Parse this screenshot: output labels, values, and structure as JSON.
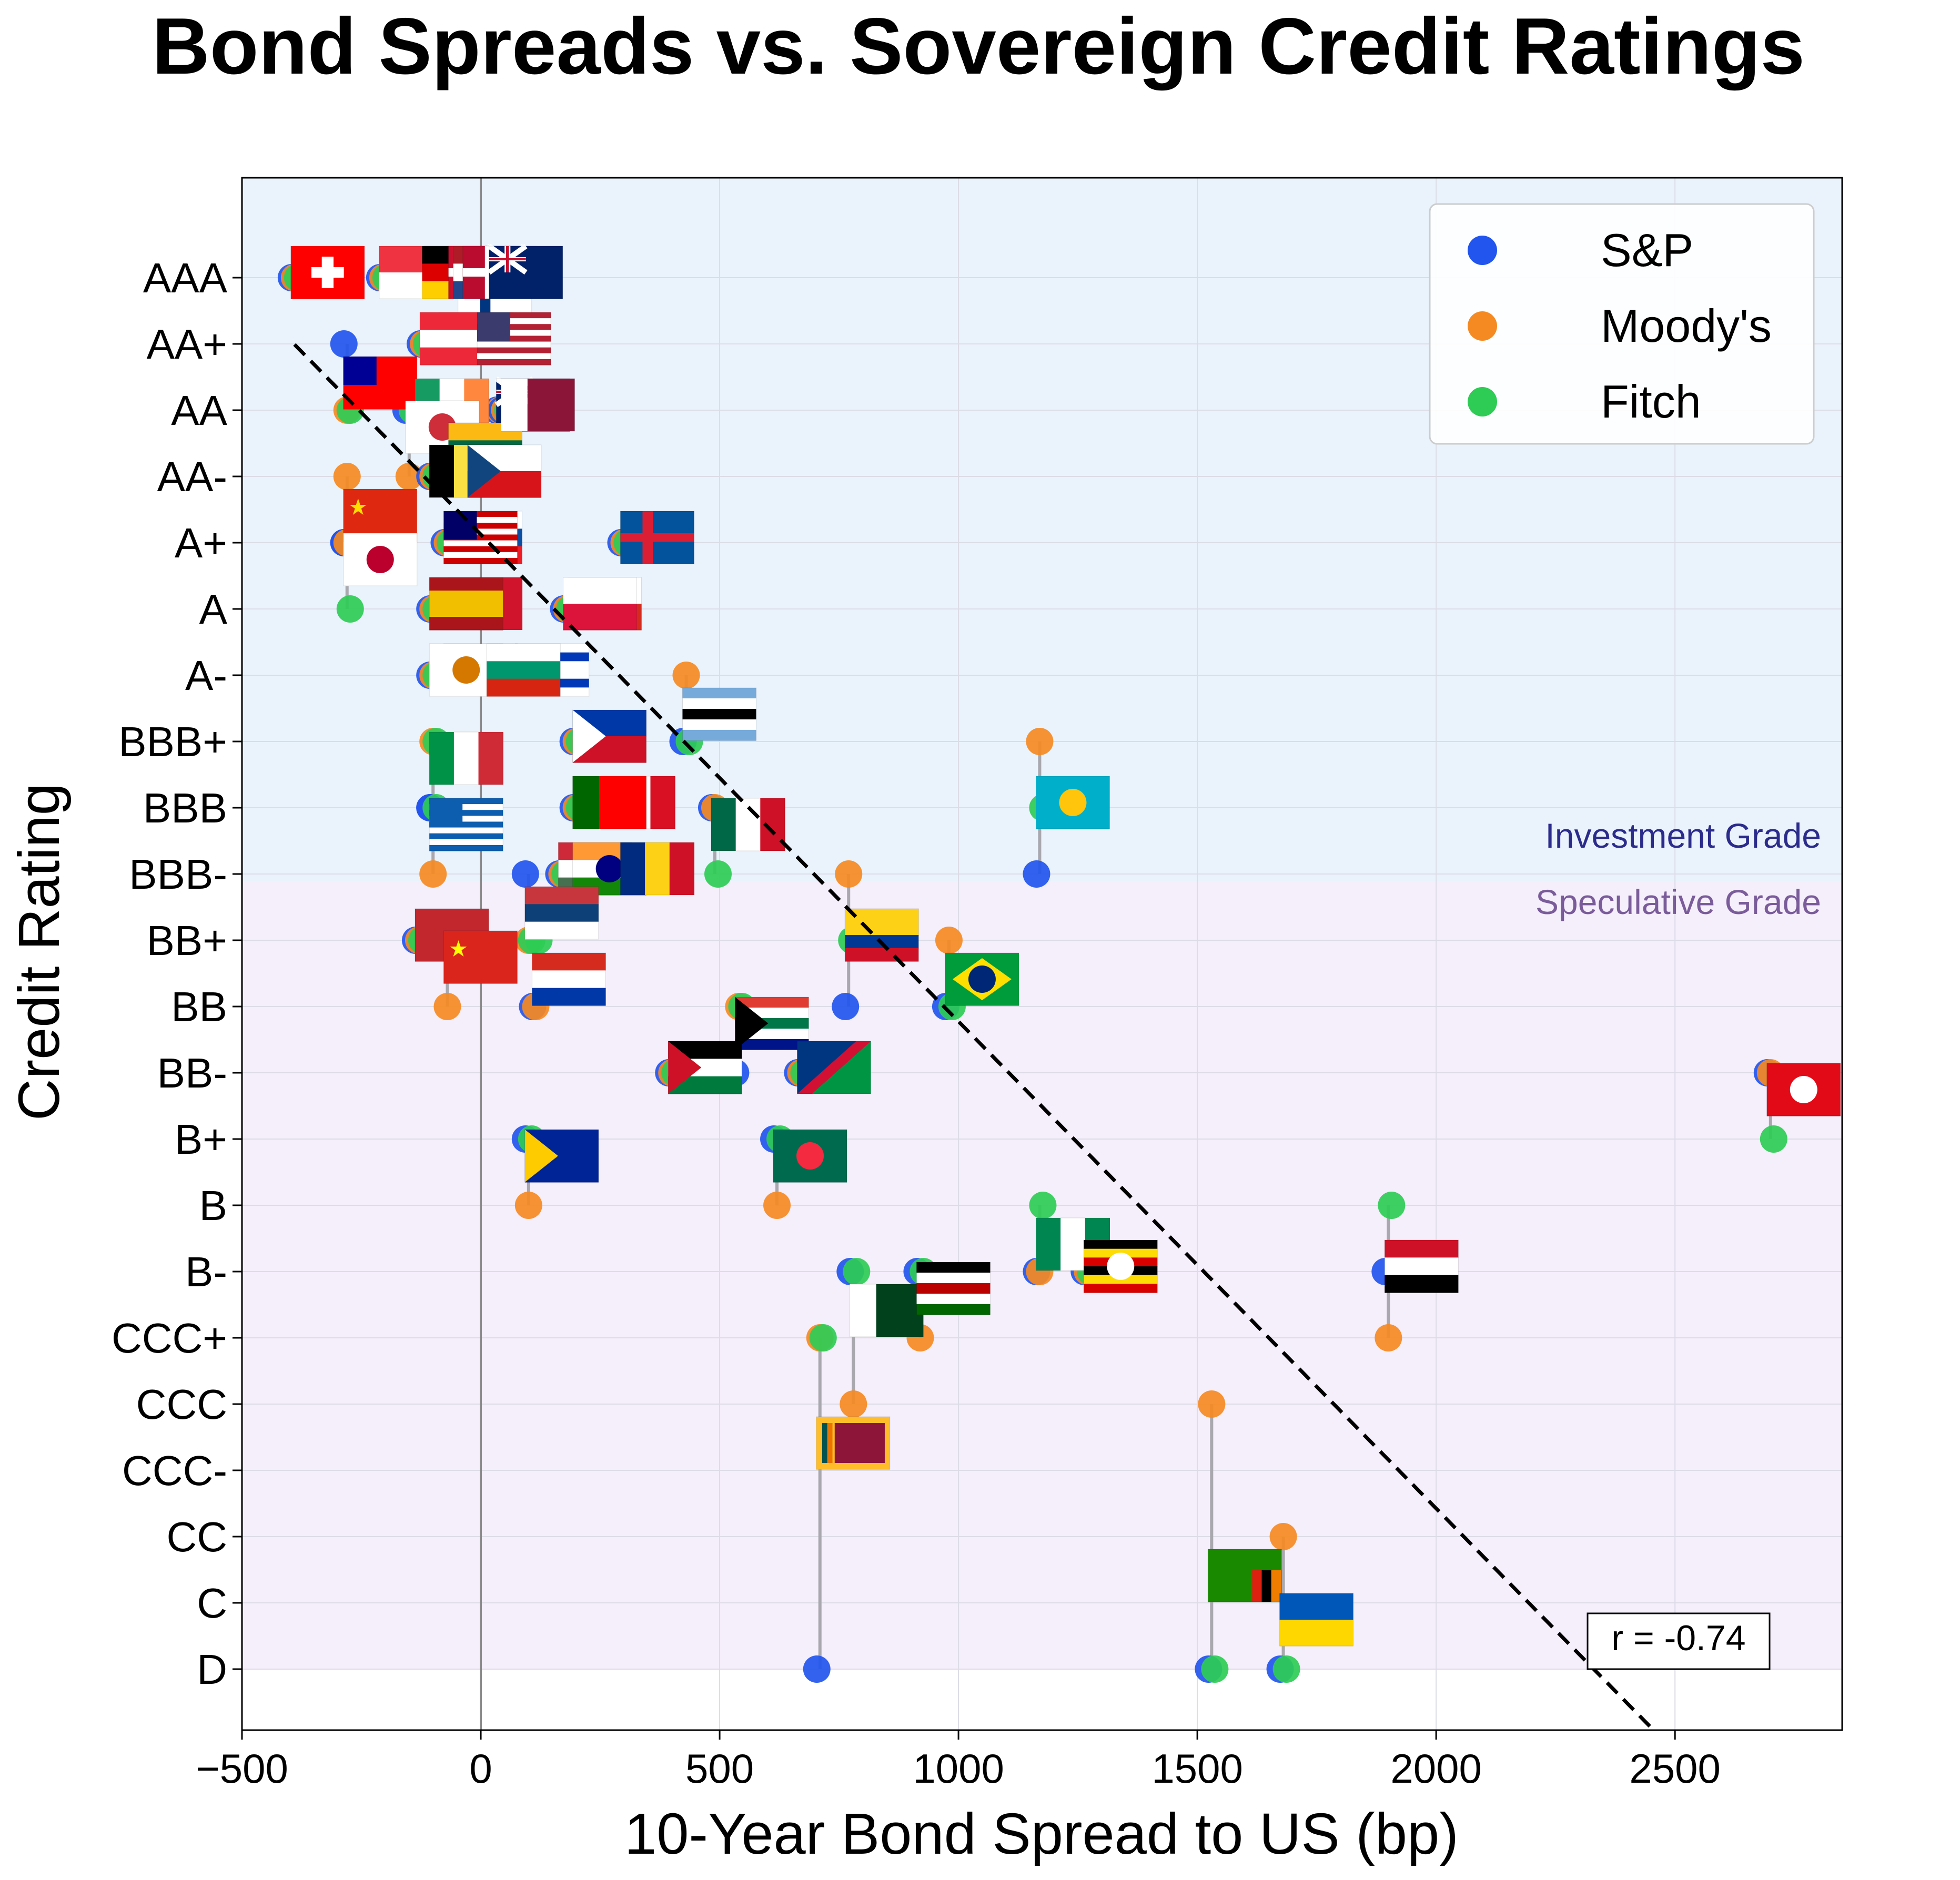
{
  "chart_data": {
    "type": "scatter",
    "title": "Bond Spreads vs. Sovereign Credit Ratings",
    "xlabel": "10-Year Bond Spread to US (bp)",
    "ylabel": "Credit Rating",
    "xlim": [
      -500,
      2850
    ],
    "x_ticks": [
      -500,
      0,
      500,
      1000,
      1500,
      2000,
      2500
    ],
    "x_tick_labels": [
      "−500",
      "0",
      "500",
      "1000",
      "1500",
      "2000",
      "2500"
    ],
    "rating_scale": [
      "AAA",
      "AA+",
      "AA",
      "AA-",
      "A+",
      "A",
      "A-",
      "BBB+",
      "BBB",
      "BBB-",
      "BB+",
      "BB",
      "BB-",
      "B+",
      "B",
      "B-",
      "CCC+",
      "CCC",
      "CCC-",
      "CC",
      "C",
      "D"
    ],
    "grid": true,
    "legend_position": "top-right",
    "bands": {
      "investment_grade_label": "Investment Grade",
      "speculative_grade_label": "Speculative Grade",
      "investment_color": "#eaf3fc",
      "speculative_color": "#f5eefb"
    },
    "series_colors": {
      "S&P": "#2255ee",
      "Moody's": "#f58a22",
      "Fitch": "#2ecc55"
    },
    "legend": [
      "S&P",
      "Moody's",
      "Fitch"
    ],
    "annotation": "r = -0.74",
    "trendline": {
      "style": "dashed",
      "x_from": -390,
      "x_to": 2530,
      "slope_ratings_per_bp": 0.00735,
      "intercept_rating": 0.2
    },
    "points": [
      {
        "country": "Switzerland",
        "x": -390,
        "sp": 0,
        "moodys": 0,
        "fitch": 0,
        "flag": "ch"
      },
      {
        "country": "Singapore",
        "x": -205,
        "sp": 0,
        "moodys": 0,
        "fitch": 0,
        "flag": "sg"
      },
      {
        "country": "Sweden",
        "x": -110,
        "sp": 0,
        "moodys": 0,
        "fitch": 0,
        "flag": "se"
      },
      {
        "country": "Finland",
        "x": -40,
        "sp": 1,
        "moodys": 0,
        "fitch": 1,
        "flag": "fi"
      },
      {
        "country": "Australia",
        "x": 20,
        "sp": 0,
        "moodys": 0,
        "fitch": 0,
        "flag": "au"
      },
      {
        "country": "Hong Kong",
        "x": -80,
        "sp": 1,
        "moodys": 1,
        "fitch": 1,
        "flag": "hk"
      },
      {
        "country": "Germany",
        "x": -115,
        "sp": 0,
        "moodys": 0,
        "fitch": 0,
        "flag": "de"
      },
      {
        "country": "Denmark",
        "x": -60,
        "sp": 0,
        "moodys": 0,
        "fitch": 0,
        "flag": "dk"
      },
      {
        "country": "Netherlands",
        "x": -50,
        "sp": 0,
        "moodys": 0,
        "fitch": 0,
        "flag": "nl"
      },
      {
        "country": "Norway",
        "x": -30,
        "sp": 0,
        "moodys": 0,
        "fitch": 0,
        "flag": "no"
      },
      {
        "country": "New Zealand",
        "x": 25,
        "sp": 0,
        "moodys": 0,
        "fitch": 0,
        "flag": "nz"
      },
      {
        "country": "Taiwan",
        "x": -280,
        "sp": 1,
        "moodys": 2,
        "fitch": 2,
        "flag": "tw"
      },
      {
        "country": "Austria",
        "x": -120,
        "sp": 1,
        "moodys": 1,
        "fitch": 1,
        "flag": "at"
      },
      {
        "country": "United States",
        "x": 0,
        "sp": 1,
        "moodys": 1,
        "fitch": 1,
        "flag": "us"
      },
      {
        "country": "Ireland",
        "x": -130,
        "sp": 2,
        "moodys": 2,
        "fitch": 2,
        "flag": "ie"
      },
      {
        "country": "United Kingdom",
        "x": 40,
        "sp": 2,
        "moodys": 2,
        "fitch": 2,
        "flag": "gb"
      },
      {
        "country": "South Korea",
        "x": -150,
        "sp": 2,
        "moodys": 3,
        "fitch": 2,
        "flag": "kr"
      },
      {
        "country": "Lithuania",
        "x": -60,
        "sp": 3,
        "moodys": 2,
        "fitch": 3,
        "flag": "lt"
      },
      {
        "country": "Qatar",
        "x": 50,
        "sp": 2,
        "moodys": 2,
        "fitch": 2,
        "flag": "qa"
      },
      {
        "country": "China",
        "x": -280,
        "sp": 4,
        "moodys": 3,
        "fitch": 4,
        "flag": "cn"
      },
      {
        "country": "Belgium",
        "x": -100,
        "sp": 3,
        "moodys": 3,
        "fitch": 3,
        "flag": "be"
      },
      {
        "country": "Slovakia",
        "x": -60,
        "sp": 4,
        "moodys": 4,
        "fitch": 4,
        "flag": "sk"
      },
      {
        "country": "Czech Republic",
        "x": -20,
        "sp": 3,
        "moodys": 3,
        "fitch": 3,
        "flag": "cz"
      },
      {
        "country": "Malaysia",
        "x": -70,
        "sp": 4,
        "moodys": 4,
        "fitch": 4,
        "flag": "my"
      },
      {
        "country": "Japan",
        "x": -280,
        "sp": 4,
        "moodys": 4,
        "fitch": 5,
        "flag": "jp"
      },
      {
        "country": "Malta",
        "x": -60,
        "sp": 5,
        "moodys": 5,
        "fitch": 5,
        "flag": "mt"
      },
      {
        "country": "Chile",
        "x": 190,
        "sp": 5,
        "moodys": 5,
        "fitch": 5,
        "flag": "cl"
      },
      {
        "country": "Iceland",
        "x": 300,
        "sp": 4,
        "moodys": 4,
        "fitch": 4,
        "flag": "is"
      },
      {
        "country": "Spain",
        "x": -100,
        "sp": 5,
        "moodys": 5,
        "fitch": 5,
        "flag": "es"
      },
      {
        "country": "Poland",
        "x": 180,
        "sp": 5,
        "moodys": 5,
        "fitch": 5,
        "flag": "pl"
      },
      {
        "country": "Croatia",
        "x": -70,
        "sp": 6,
        "moodys": 6,
        "fitch": 6,
        "flag": "hr"
      },
      {
        "country": "Israel",
        "x": 80,
        "sp": 6,
        "moodys": 6,
        "fitch": 6,
        "flag": "il"
      },
      {
        "country": "Cyprus",
        "x": -100,
        "sp": 6,
        "moodys": 6,
        "fitch": 6,
        "flag": "cy"
      },
      {
        "country": "Bulgaria",
        "x": 20,
        "sp": 6,
        "moodys": 6,
        "fitch": 6,
        "flag": "bg"
      },
      {
        "country": "Botswana",
        "x": 430,
        "sp": 7,
        "moodys": 6,
        "fitch": 7,
        "flag": "bw"
      },
      {
        "country": "Italy",
        "x": -100,
        "sp": 8,
        "moodys": 7,
        "fitch": 7,
        "flag": "it"
      },
      {
        "country": "Philippines",
        "x": 200,
        "sp": 7,
        "moodys": 7,
        "fitch": 7,
        "flag": "ph"
      },
      {
        "country": "Peru",
        "x": 260,
        "sp": 8,
        "moodys": 8,
        "fitch": 8,
        "flag": "pe"
      },
      {
        "country": "Greece",
        "x": -100,
        "sp": 8,
        "moodys": 9,
        "fitch": 8,
        "flag": "gr"
      },
      {
        "country": "Hungary",
        "x": 170,
        "sp": 9,
        "moodys": 9,
        "fitch": 9,
        "flag": "hu"
      },
      {
        "country": "Portugal",
        "x": 200,
        "sp": 8,
        "moodys": 8,
        "fitch": 8,
        "flag": "pt"
      },
      {
        "country": "India",
        "x": 200,
        "sp": 9,
        "moodys": 9,
        "fitch": 9,
        "flag": "in"
      },
      {
        "country": "Mexico",
        "x": 490,
        "sp": 8,
        "moodys": 8,
        "fitch": 9,
        "flag": "mx"
      },
      {
        "country": "Kazakhstan",
        "x": 1170,
        "sp": 9,
        "moodys": 7,
        "fitch": 8,
        "flag": "kz"
      },
      {
        "country": "Serbia",
        "x": 100,
        "sp": 9,
        "moodys": 10,
        "fitch": 10,
        "flag": "rs"
      },
      {
        "country": "Romania",
        "x": 300,
        "sp": 9,
        "moodys": 9,
        "fitch": 9,
        "flag": "ro"
      },
      {
        "country": "Colombia",
        "x": 770,
        "sp": 11,
        "moodys": 9,
        "fitch": 10,
        "flag": "co"
      },
      {
        "country": "Morocco",
        "x": -130,
        "sp": 10,
        "moodys": 10,
        "fitch": 10,
        "flag": "ma"
      },
      {
        "country": "Vietnam",
        "x": -70,
        "sp": 10,
        "moodys": 11,
        "fitch": 10,
        "flag": "vn"
      },
      {
        "country": "Paraguay",
        "x": 115,
        "sp": 11,
        "moodys": 11,
        "fitch": 10,
        "flag": "py"
      },
      {
        "country": "Brazil",
        "x": 980,
        "sp": 11,
        "moodys": 10,
        "fitch": 11,
        "flag": "br"
      },
      {
        "country": "South Africa",
        "x": 540,
        "sp": 12,
        "moodys": 11,
        "fitch": 11,
        "flag": "za"
      },
      {
        "country": "Jordan",
        "x": 400,
        "sp": 12,
        "moodys": 12,
        "fitch": 12,
        "flag": "jo"
      },
      {
        "country": "Namibia",
        "x": 670,
        "sp": 12,
        "moodys": 12,
        "fitch": 12,
        "flag": "na"
      },
      {
        "country": "Turkey",
        "x": 2700,
        "sp": 12,
        "moodys": 12,
        "fitch": 13,
        "flag": "tr"
      },
      {
        "country": "Bangladesh",
        "x": 620,
        "sp": 13,
        "moodys": 14,
        "fitch": 13,
        "flag": "bd"
      },
      {
        "country": "Bosnia and Herzegovina",
        "x": 100,
        "sp": 13,
        "moodys": 14,
        "fitch": 13,
        "flag": "ba"
      },
      {
        "country": "Nigeria",
        "x": 1170,
        "sp": 15,
        "moodys": 15,
        "fitch": 14,
        "flag": "ng"
      },
      {
        "country": "Uganda",
        "x": 1270,
        "sp": 15,
        "moodys": 15,
        "fitch": 15,
        "flag": "ug"
      },
      {
        "country": "Egypt",
        "x": 1900,
        "sp": 15,
        "moodys": 16,
        "fitch": 14,
        "flag": "eg"
      },
      {
        "country": "Pakistan",
        "x": 780,
        "sp": 15,
        "moodys": 17,
        "fitch": 15,
        "flag": "pk"
      },
      {
        "country": "Kenya",
        "x": 920,
        "sp": 15,
        "moodys": 16,
        "fitch": 15,
        "flag": "ke"
      },
      {
        "country": "Sri Lanka",
        "x": 710,
        "sp": 21,
        "moodys": 16,
        "fitch": 16,
        "flag": "lk"
      },
      {
        "country": "Zambia",
        "x": 1530,
        "sp": 21,
        "moodys": 17,
        "fitch": 21,
        "flag": "zm"
      },
      {
        "country": "Ukraine",
        "x": 1680,
        "sp": 21,
        "moodys": 19,
        "fitch": 21,
        "flag": "ua"
      }
    ]
  }
}
